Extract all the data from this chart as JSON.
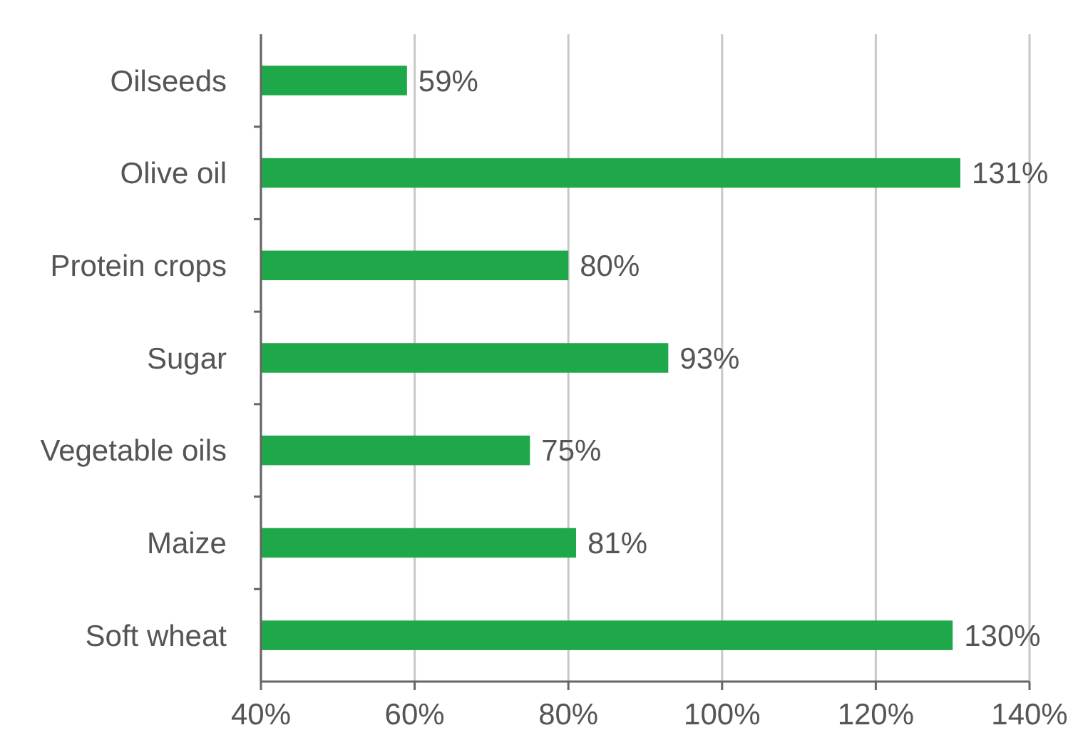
{
  "chart_data": {
    "type": "bar",
    "orientation": "horizontal",
    "categories": [
      "Oilseeds",
      "Olive oil",
      "Protein crops",
      "Sugar",
      "Vegetable oils",
      "Maize",
      "Soft wheat"
    ],
    "values": [
      59,
      131,
      80,
      93,
      75,
      81,
      130
    ],
    "value_labels": [
      "59%",
      "131%",
      "80%",
      "93%",
      "75%",
      "81%",
      "130%"
    ],
    "color": "#1ea84a",
    "xlim": [
      40,
      140
    ],
    "xticks": [
      {
        "value": 40,
        "label": "40%"
      },
      {
        "value": 60,
        "label": "60%"
      },
      {
        "value": 80,
        "label": "80%"
      },
      {
        "value": 100,
        "label": "100%"
      },
      {
        "value": 120,
        "label": "120%"
      },
      {
        "value": 140,
        "label": "140%"
      }
    ],
    "grid": "x"
  }
}
